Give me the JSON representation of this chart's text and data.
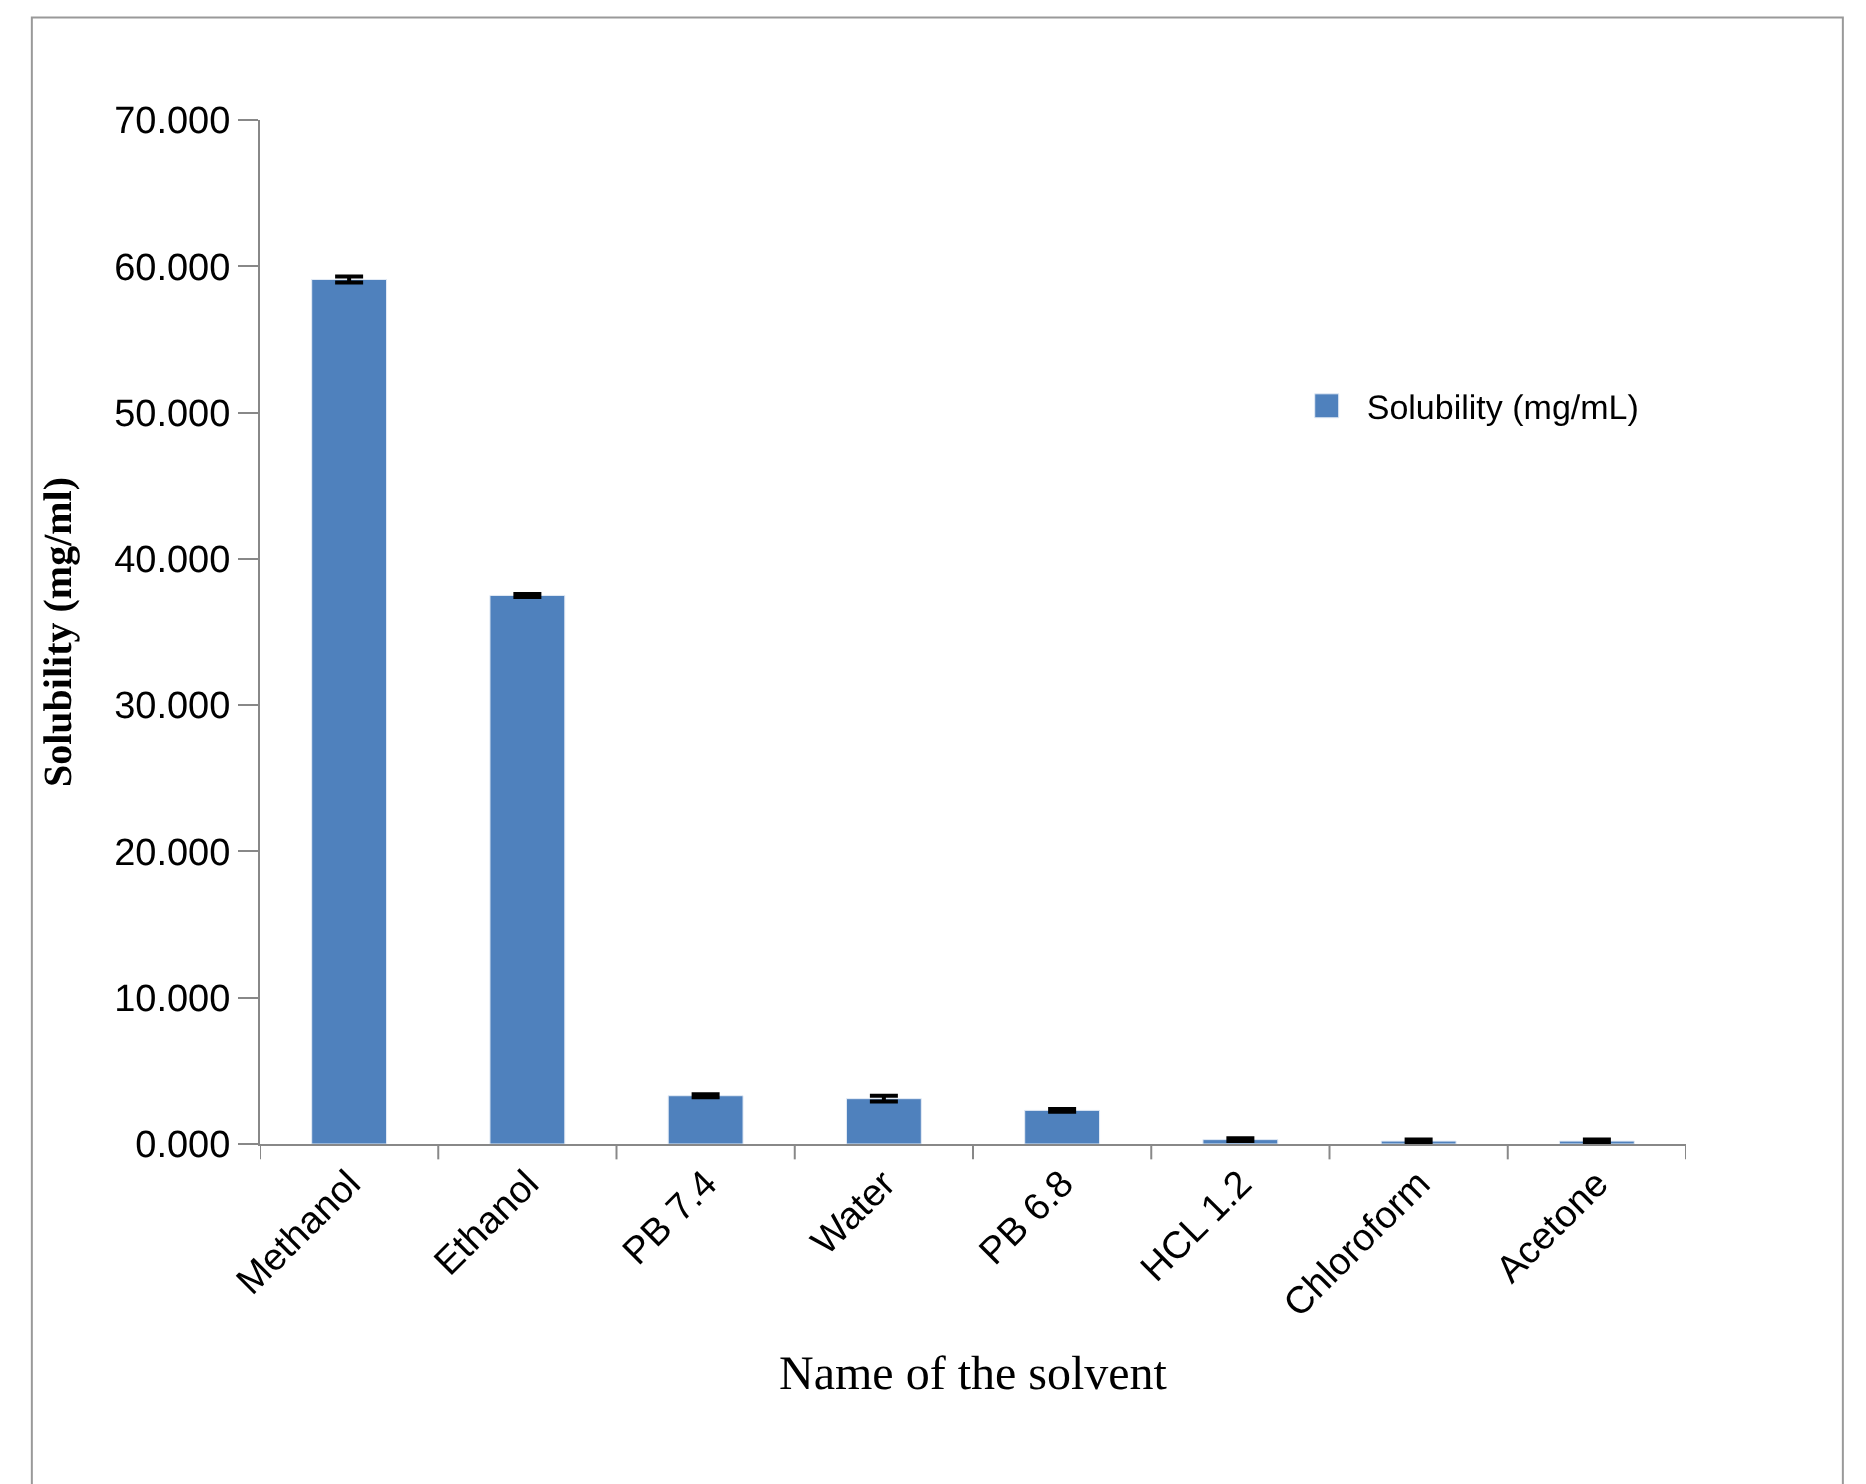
{
  "chart_data": {
    "type": "bar",
    "xlabel": "Name of the solvent",
    "ylabel": "Solubility (mg/ml)",
    "categories": [
      "Methanol",
      "Ethanol",
      "PB 7.4",
      "Water",
      "PB 6.8",
      "HCL 1.2",
      "Chloroform",
      "Acetone"
    ],
    "series": [
      {
        "name": "Solubility (mg/mL)",
        "color": "#4f81bd",
        "values": [
          59.1,
          37.5,
          3.3,
          3.1,
          2.3,
          0.3,
          0.2,
          0.2
        ],
        "errors": [
          0.2,
          0.1,
          0.1,
          0.2,
          0.1,
          0.1,
          0.1,
          0.1
        ]
      }
    ],
    "ylim": [
      0,
      70
    ],
    "yticks": [
      {
        "value": 0,
        "label": "0.000"
      },
      {
        "value": 10,
        "label": "10.000"
      },
      {
        "value": 20,
        "label": "20.000"
      },
      {
        "value": 30,
        "label": "30.000"
      },
      {
        "value": 40,
        "label": "40.000"
      },
      {
        "value": 50,
        "label": "50.000"
      },
      {
        "value": 60,
        "label": "60.000"
      },
      {
        "value": 70,
        "label": "70.000"
      }
    ],
    "grid": false,
    "legend": "right"
  }
}
